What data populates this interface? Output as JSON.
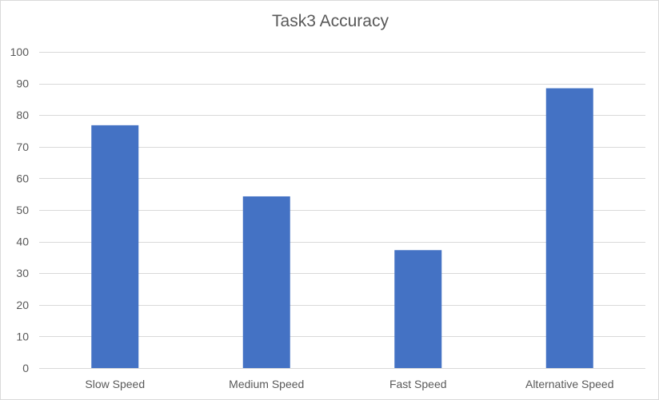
{
  "chart_data": {
    "type": "bar",
    "title": "Task3 Accuracy",
    "categories": [
      "Slow Speed",
      "Medium Speed",
      "Fast Speed",
      "Alternative Speed"
    ],
    "values": [
      76.8,
      54.3,
      37.3,
      88.5
    ],
    "ylim": [
      0,
      100
    ],
    "yticks": [
      0,
      10,
      20,
      30,
      40,
      50,
      60,
      70,
      80,
      90,
      100
    ],
    "grid": true,
    "legend": "none",
    "bar_color": "#4472c4",
    "grid_color": "#d9d9d9"
  }
}
